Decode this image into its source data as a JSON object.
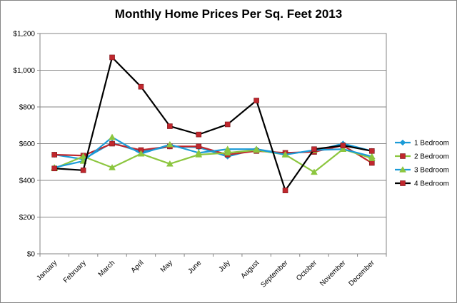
{
  "chart_data": {
    "type": "line",
    "title": "Monthly Home Prices Per Sq. Feet 2013",
    "xlabel": "",
    "ylabel": "",
    "categories": [
      "January",
      "February",
      "March",
      "April",
      "May",
      "June",
      "July",
      "August",
      "September",
      "October",
      "November",
      "December"
    ],
    "ylim": [
      0,
      1200
    ],
    "yticks": [
      0,
      200,
      400,
      600,
      800,
      1000,
      1200
    ],
    "ytick_labels": [
      "$0",
      "$200",
      "$400",
      "$600",
      "$800",
      "$1,000",
      "$1,200"
    ],
    "grid": true,
    "legend": "right",
    "series": [
      {
        "name": "1 Bedroom",
        "color": "#1b9bd7",
        "marker": "diamond",
        "values": [
          540,
          515,
          605,
          555,
          585,
          580,
          530,
          570,
          545,
          560,
          600,
          560
        ]
      },
      {
        "name": "2 Bedroom",
        "color": "#c0272d",
        "marker": "square",
        "values": [
          540,
          535,
          600,
          565,
          585,
          585,
          540,
          560,
          550,
          555,
          590,
          495
        ]
      },
      {
        "name": "3 Bedroom",
        "color": "#8cc63f",
        "marker": "triangle",
        "values": [
          465,
          530,
          470,
          545,
          490,
          540,
          550,
          565,
          540,
          445,
          570,
          520
        ]
      },
      {
        "name": "3 Bedroom",
        "color": "#1b9bd7",
        "marker": "triangle",
        "values": [
          470,
          505,
          635,
          545,
          595,
          550,
          570,
          570,
          540,
          565,
          570,
          530
        ]
      },
      {
        "name": "4 Bedroom",
        "color": "#000000",
        "marker": "square",
        "marker_color": "#c0272d",
        "values": [
          465,
          455,
          1070,
          910,
          695,
          650,
          705,
          835,
          345,
          570,
          590,
          560
        ]
      }
    ],
    "legend_entries": [
      {
        "name": "1 Bedroom",
        "line_color": "#1b9bd7",
        "marker": "diamond",
        "marker_color": "#1b9bd7"
      },
      {
        "name": "2 Bedroom",
        "line_color": "#8cc63f",
        "marker": "square",
        "marker_color": "#c0272d"
      },
      {
        "name": "3 Bedroom",
        "line_color": "#1b9bd7",
        "marker": "triangle",
        "marker_color": "#8cc63f"
      },
      {
        "name": "4 Bedroom",
        "line_color": "#000000",
        "marker": "square",
        "marker_color": "#c0272d"
      }
    ]
  }
}
